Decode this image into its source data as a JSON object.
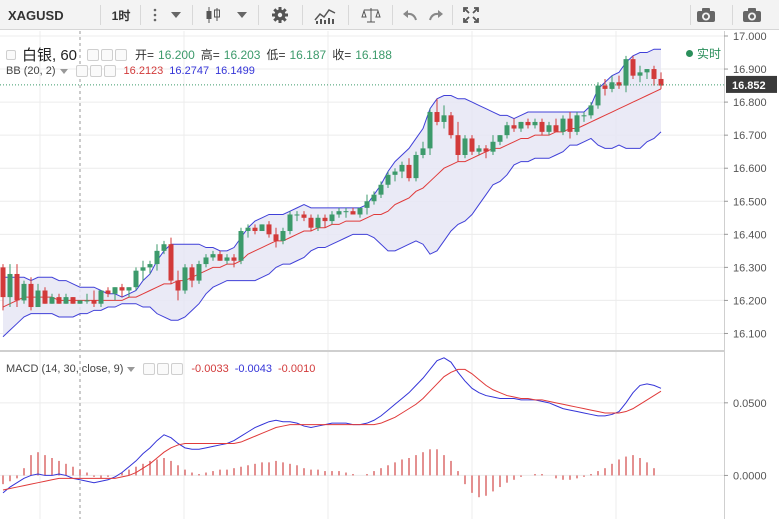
{
  "toolbar": {
    "symbol": "XAGUSD",
    "interval": "1时"
  },
  "header": {
    "title": "白银, 60",
    "open_label": "开=",
    "open": "16.200",
    "high_label": "高=",
    "high": "16.203",
    "low_label": "低=",
    "low": "16.187",
    "close_label": "收=",
    "close": "16.188",
    "realtime_label": "实时"
  },
  "bb_legend": {
    "name": "BB (20, 2)",
    "mid": "16.2123",
    "upper": "16.2747",
    "lower": "16.1499"
  },
  "macd_legend": {
    "name": "MACD (14, 30, close, 9)",
    "hist": "-0.0033",
    "macd": "-0.0043",
    "signal": "-0.0010"
  },
  "colors": {
    "up": "#3c9a6b",
    "down": "#d23a3a",
    "bb_fill": "#e6e6f5",
    "bb_band": "#4040d8",
    "bb_mid": "#e03a3a",
    "macd_line": "#3434d8",
    "signal_line": "#e03a3a",
    "hist": "#d96060"
  },
  "chart_data": [
    {
      "type": "candlestick",
      "title": "白银, 60",
      "price_axis_ticks": [
        "17.000",
        "16.900",
        "16.800",
        "16.700",
        "16.600",
        "16.500",
        "16.400",
        "16.300",
        "16.200",
        "16.100"
      ],
      "ylim": [
        16.05,
        17.0
      ],
      "current_price": "16.852",
      "candles": [
        [
          16.3,
          16.31,
          16.17,
          16.21
        ],
        [
          16.21,
          16.31,
          16.18,
          16.28
        ],
        [
          16.28,
          16.31,
          16.18,
          16.2
        ],
        [
          16.2,
          16.26,
          16.19,
          16.25
        ],
        [
          16.25,
          16.27,
          16.17,
          16.18
        ],
        [
          16.18,
          16.25,
          16.18,
          16.23
        ],
        [
          16.23,
          16.24,
          16.19,
          16.19
        ],
        [
          16.19,
          16.22,
          16.19,
          16.21
        ],
        [
          16.21,
          16.22,
          16.19,
          16.19
        ],
        [
          16.19,
          16.22,
          16.19,
          16.21
        ],
        [
          16.21,
          16.21,
          16.19,
          16.19
        ],
        [
          16.19,
          16.2,
          16.19,
          16.2
        ],
        [
          16.2,
          16.22,
          16.19,
          16.2
        ],
        [
          16.2,
          16.23,
          16.18,
          16.19
        ],
        [
          16.19,
          16.23,
          16.18,
          16.23
        ],
        [
          16.23,
          16.24,
          16.21,
          16.22
        ],
        [
          16.22,
          16.24,
          16.2,
          16.24
        ],
        [
          16.24,
          16.25,
          16.21,
          16.23
        ],
        [
          16.23,
          16.24,
          16.21,
          16.24
        ],
        [
          16.24,
          16.3,
          16.23,
          16.29
        ],
        [
          16.29,
          16.32,
          16.26,
          16.3
        ],
        [
          16.3,
          16.32,
          16.28,
          16.31
        ],
        [
          16.31,
          16.37,
          16.29,
          16.35
        ],
        [
          16.35,
          16.38,
          16.34,
          16.37
        ],
        [
          16.37,
          16.39,
          16.25,
          16.26
        ],
        [
          16.26,
          16.29,
          16.2,
          16.23
        ],
        [
          16.23,
          16.31,
          16.22,
          16.3
        ],
        [
          16.3,
          16.31,
          16.24,
          16.26
        ],
        [
          16.26,
          16.32,
          16.25,
          16.31
        ],
        [
          16.31,
          16.34,
          16.3,
          16.33
        ],
        [
          16.33,
          16.35,
          16.32,
          16.34
        ],
        [
          16.34,
          16.35,
          16.32,
          16.32
        ],
        [
          16.32,
          16.34,
          16.31,
          16.33
        ],
        [
          16.33,
          16.34,
          16.3,
          16.32
        ],
        [
          16.32,
          16.42,
          16.31,
          16.41
        ],
        [
          16.41,
          16.43,
          16.39,
          16.42
        ],
        [
          16.42,
          16.43,
          16.4,
          16.41
        ],
        [
          16.41,
          16.43,
          16.41,
          16.43
        ],
        [
          16.43,
          16.44,
          16.39,
          16.4
        ],
        [
          16.4,
          16.42,
          16.36,
          16.38
        ],
        [
          16.38,
          16.42,
          16.37,
          16.41
        ],
        [
          16.41,
          16.47,
          16.4,
          16.46
        ],
        [
          16.46,
          16.47,
          16.44,
          16.46
        ],
        [
          16.46,
          16.47,
          16.44,
          16.45
        ],
        [
          16.45,
          16.46,
          16.41,
          16.42
        ],
        [
          16.42,
          16.46,
          16.41,
          16.45
        ],
        [
          16.45,
          16.46,
          16.42,
          16.44
        ],
        [
          16.44,
          16.47,
          16.43,
          16.46
        ],
        [
          16.46,
          16.48,
          16.45,
          16.47
        ],
        [
          16.47,
          16.48,
          16.45,
          16.47
        ],
        [
          16.47,
          16.48,
          16.46,
          16.46
        ],
        [
          16.46,
          16.48,
          16.45,
          16.48
        ],
        [
          16.48,
          16.52,
          16.46,
          16.5
        ],
        [
          16.5,
          16.53,
          16.49,
          16.52
        ],
        [
          16.52,
          16.56,
          16.51,
          16.55
        ],
        [
          16.55,
          16.59,
          16.54,
          16.58
        ],
        [
          16.58,
          16.6,
          16.56,
          16.59
        ],
        [
          16.59,
          16.62,
          16.57,
          16.61
        ],
        [
          16.61,
          16.63,
          16.56,
          16.57
        ],
        [
          16.57,
          16.65,
          16.56,
          16.64
        ],
        [
          16.64,
          16.68,
          16.63,
          16.66
        ],
        [
          16.66,
          16.78,
          16.64,
          16.77
        ],
        [
          16.77,
          16.81,
          16.73,
          16.74
        ],
        [
          16.74,
          16.79,
          16.72,
          16.76
        ],
        [
          16.76,
          16.77,
          16.69,
          16.7
        ],
        [
          16.7,
          16.74,
          16.62,
          16.64
        ],
        [
          16.64,
          16.7,
          16.63,
          16.69
        ],
        [
          16.69,
          16.7,
          16.64,
          16.65
        ],
        [
          16.65,
          16.67,
          16.64,
          16.66
        ],
        [
          16.66,
          16.67,
          16.63,
          16.65
        ],
        [
          16.65,
          16.7,
          16.64,
          16.68
        ],
        [
          16.68,
          16.7,
          16.67,
          16.7
        ],
        [
          16.7,
          16.74,
          16.69,
          16.73
        ],
        [
          16.73,
          16.75,
          16.71,
          16.72
        ],
        [
          16.72,
          16.74,
          16.71,
          16.74
        ],
        [
          16.74,
          16.75,
          16.72,
          16.73
        ],
        [
          16.73,
          16.75,
          16.72,
          16.74
        ],
        [
          16.74,
          16.75,
          16.7,
          16.71
        ],
        [
          16.71,
          16.74,
          16.7,
          16.73
        ],
        [
          16.73,
          16.75,
          16.71,
          16.71
        ],
        [
          16.71,
          16.76,
          16.7,
          16.75
        ],
        [
          16.75,
          16.77,
          16.69,
          16.71
        ],
        [
          16.71,
          16.77,
          16.7,
          16.76
        ],
        [
          16.76,
          16.77,
          16.74,
          16.76
        ],
        [
          16.76,
          16.8,
          16.75,
          16.79
        ],
        [
          16.79,
          16.86,
          16.78,
          16.85
        ],
        [
          16.85,
          16.87,
          16.82,
          16.84
        ],
        [
          16.84,
          16.88,
          16.83,
          16.86
        ],
        [
          16.86,
          16.88,
          16.84,
          16.85
        ],
        [
          16.85,
          16.94,
          16.83,
          16.93
        ],
        [
          16.93,
          16.94,
          16.87,
          16.88
        ],
        [
          16.88,
          16.91,
          16.86,
          16.89
        ],
        [
          16.89,
          16.9,
          16.87,
          16.9
        ],
        [
          16.9,
          16.91,
          16.85,
          16.87
        ],
        [
          16.87,
          16.89,
          16.84,
          16.85
        ]
      ],
      "bb_upper": [
        16.27,
        16.27,
        16.27,
        16.27,
        16.26,
        16.27,
        16.27,
        16.27,
        16.26,
        16.26,
        16.25,
        16.24,
        16.24,
        16.24,
        16.23,
        16.22,
        16.22,
        16.21,
        16.22,
        16.23,
        16.26,
        16.28,
        16.32,
        16.35,
        16.37,
        16.37,
        16.37,
        16.37,
        16.37,
        16.36,
        16.36,
        16.35,
        16.35,
        16.36,
        16.39,
        16.42,
        16.44,
        16.45,
        16.46,
        16.46,
        16.46,
        16.47,
        16.48,
        16.49,
        16.48,
        16.48,
        16.48,
        16.48,
        16.48,
        16.48,
        16.48,
        16.48,
        16.49,
        16.52,
        16.55,
        16.59,
        16.62,
        16.64,
        16.66,
        16.69,
        16.72,
        16.78,
        16.81,
        16.82,
        16.82,
        16.81,
        16.81,
        16.8,
        16.79,
        16.78,
        16.77,
        16.76,
        16.76,
        16.75,
        16.76,
        16.77,
        16.77,
        16.77,
        16.77,
        16.77,
        16.77,
        16.77,
        16.77,
        16.77,
        16.79,
        16.84,
        16.86,
        16.88,
        16.89,
        16.92,
        16.94,
        16.95,
        16.95,
        16.96,
        16.96
      ],
      "bb_mid": [
        16.18,
        16.19,
        16.2,
        16.21,
        16.21,
        16.21,
        16.21,
        16.21,
        16.2,
        16.2,
        16.2,
        16.2,
        16.2,
        16.2,
        16.2,
        16.2,
        16.2,
        16.2,
        16.21,
        16.21,
        16.22,
        16.23,
        16.24,
        16.25,
        16.25,
        16.26,
        16.26,
        16.27,
        16.28,
        16.29,
        16.3,
        16.3,
        16.31,
        16.31,
        16.32,
        16.34,
        16.35,
        16.36,
        16.37,
        16.38,
        16.38,
        16.39,
        16.4,
        16.41,
        16.41,
        16.42,
        16.42,
        16.43,
        16.43,
        16.44,
        16.44,
        16.44,
        16.45,
        16.46,
        16.46,
        16.47,
        16.49,
        16.5,
        16.51,
        16.53,
        16.54,
        16.56,
        16.58,
        16.6,
        16.61,
        16.62,
        16.62,
        16.63,
        16.64,
        16.65,
        16.66,
        16.66,
        16.67,
        16.68,
        16.69,
        16.69,
        16.7,
        16.7,
        16.7,
        16.71,
        16.71,
        16.72,
        16.72,
        16.73,
        16.74,
        16.75,
        16.76,
        16.77,
        16.78,
        16.79,
        16.8,
        16.81,
        16.82,
        16.83,
        16.84
      ],
      "bb_lower": [
        16.09,
        16.11,
        16.13,
        16.15,
        16.16,
        16.16,
        16.16,
        16.16,
        16.15,
        16.15,
        16.15,
        16.16,
        16.16,
        16.17,
        16.17,
        16.18,
        16.18,
        16.19,
        16.19,
        16.19,
        16.18,
        16.18,
        16.16,
        16.15,
        16.14,
        16.14,
        16.15,
        16.17,
        16.19,
        16.22,
        16.24,
        16.25,
        16.26,
        16.26,
        16.26,
        16.26,
        16.26,
        16.27,
        16.28,
        16.3,
        16.31,
        16.31,
        16.32,
        16.33,
        16.35,
        16.36,
        16.36,
        16.37,
        16.38,
        16.39,
        16.4,
        16.4,
        16.4,
        16.39,
        16.37,
        16.35,
        16.35,
        16.36,
        16.37,
        16.38,
        16.37,
        16.34,
        16.35,
        16.38,
        16.41,
        16.43,
        16.44,
        16.46,
        16.49,
        16.52,
        16.55,
        16.56,
        16.58,
        16.61,
        16.62,
        16.62,
        16.63,
        16.63,
        16.63,
        16.64,
        16.65,
        16.67,
        16.67,
        16.68,
        16.69,
        16.67,
        16.66,
        16.66,
        16.67,
        16.66,
        16.66,
        16.66,
        16.68,
        16.69,
        16.71
      ]
    },
    {
      "type": "line",
      "title": "MACD (14, 30, close, 9)",
      "y_axis_ticks": [
        "0.0500",
        "0.0000"
      ],
      "ylim": [
        -0.03,
        0.085
      ],
      "macd": [
        -0.012,
        -0.008,
        -0.005,
        -0.002,
        0.0,
        0.001,
        0.0,
        0.0,
        0.001,
        0.0,
        -0.002,
        -0.003,
        -0.004,
        -0.005,
        -0.004,
        -0.003,
        -0.001,
        0.002,
        0.006,
        0.01,
        0.015,
        0.019,
        0.024,
        0.028,
        0.026,
        0.022,
        0.019,
        0.018,
        0.018,
        0.019,
        0.02,
        0.021,
        0.022,
        0.024,
        0.027,
        0.03,
        0.033,
        0.035,
        0.037,
        0.038,
        0.037,
        0.037,
        0.036,
        0.034,
        0.033,
        0.034,
        0.035,
        0.036,
        0.036,
        0.036,
        0.035,
        0.035,
        0.036,
        0.038,
        0.041,
        0.045,
        0.049,
        0.053,
        0.057,
        0.062,
        0.067,
        0.073,
        0.079,
        0.081,
        0.078,
        0.071,
        0.065,
        0.06,
        0.057,
        0.055,
        0.054,
        0.053,
        0.053,
        0.053,
        0.052,
        0.052,
        0.052,
        0.051,
        0.05,
        0.048,
        0.046,
        0.045,
        0.044,
        0.043,
        0.042,
        0.041,
        0.041,
        0.042,
        0.044,
        0.05,
        0.057,
        0.062,
        0.063,
        0.062,
        0.06
      ],
      "signal": [
        -0.01,
        -0.009,
        -0.008,
        -0.007,
        -0.006,
        -0.005,
        -0.004,
        -0.003,
        -0.002,
        -0.002,
        -0.002,
        -0.002,
        -0.002,
        -0.002,
        -0.002,
        -0.002,
        -0.002,
        -0.001,
        0.0,
        0.002,
        0.005,
        0.008,
        0.012,
        0.016,
        0.019,
        0.021,
        0.022,
        0.022,
        0.022,
        0.022,
        0.022,
        0.022,
        0.022,
        0.022,
        0.023,
        0.025,
        0.027,
        0.029,
        0.031,
        0.033,
        0.034,
        0.035,
        0.035,
        0.035,
        0.035,
        0.035,
        0.035,
        0.035,
        0.035,
        0.035,
        0.035,
        0.035,
        0.035,
        0.035,
        0.036,
        0.038,
        0.04,
        0.043,
        0.046,
        0.049,
        0.053,
        0.058,
        0.063,
        0.068,
        0.071,
        0.073,
        0.073,
        0.07,
        0.066,
        0.062,
        0.059,
        0.057,
        0.055,
        0.054,
        0.053,
        0.053,
        0.052,
        0.052,
        0.051,
        0.05,
        0.049,
        0.048,
        0.047,
        0.046,
        0.045,
        0.044,
        0.043,
        0.043,
        0.043,
        0.044,
        0.046,
        0.049,
        0.052,
        0.055,
        0.058
      ],
      "histogram": [
        -0.006,
        -0.004,
        -0.002,
        0.005,
        0.014,
        0.016,
        0.014,
        0.012,
        0.01,
        0.008,
        0.006,
        0.004,
        0.002,
        -0.001,
        -0.002,
        -0.001,
        0.0,
        0.002,
        0.004,
        0.006,
        0.008,
        0.01,
        0.011,
        0.012,
        0.01,
        0.007,
        0.004,
        0.002,
        0.001,
        0.002,
        0.003,
        0.004,
        0.004,
        0.005,
        0.006,
        0.007,
        0.008,
        0.009,
        0.009,
        0.01,
        0.009,
        0.008,
        0.007,
        0.005,
        0.004,
        0.004,
        0.003,
        0.003,
        0.003,
        0.002,
        0.001,
        0.0,
        0.001,
        0.003,
        0.005,
        0.007,
        0.009,
        0.011,
        0.012,
        0.014,
        0.016,
        0.018,
        0.018,
        0.014,
        0.01,
        0.003,
        -0.006,
        -0.012,
        -0.015,
        -0.014,
        -0.011,
        -0.008,
        -0.005,
        -0.003,
        -0.001,
        0.0,
        0.001,
        0.001,
        0.0,
        -0.002,
        -0.003,
        -0.003,
        -0.002,
        -0.001,
        0.001,
        0.003,
        0.005,
        0.008,
        0.011,
        0.013,
        0.014,
        0.012,
        0.009,
        0.005,
        0.0
      ]
    }
  ]
}
